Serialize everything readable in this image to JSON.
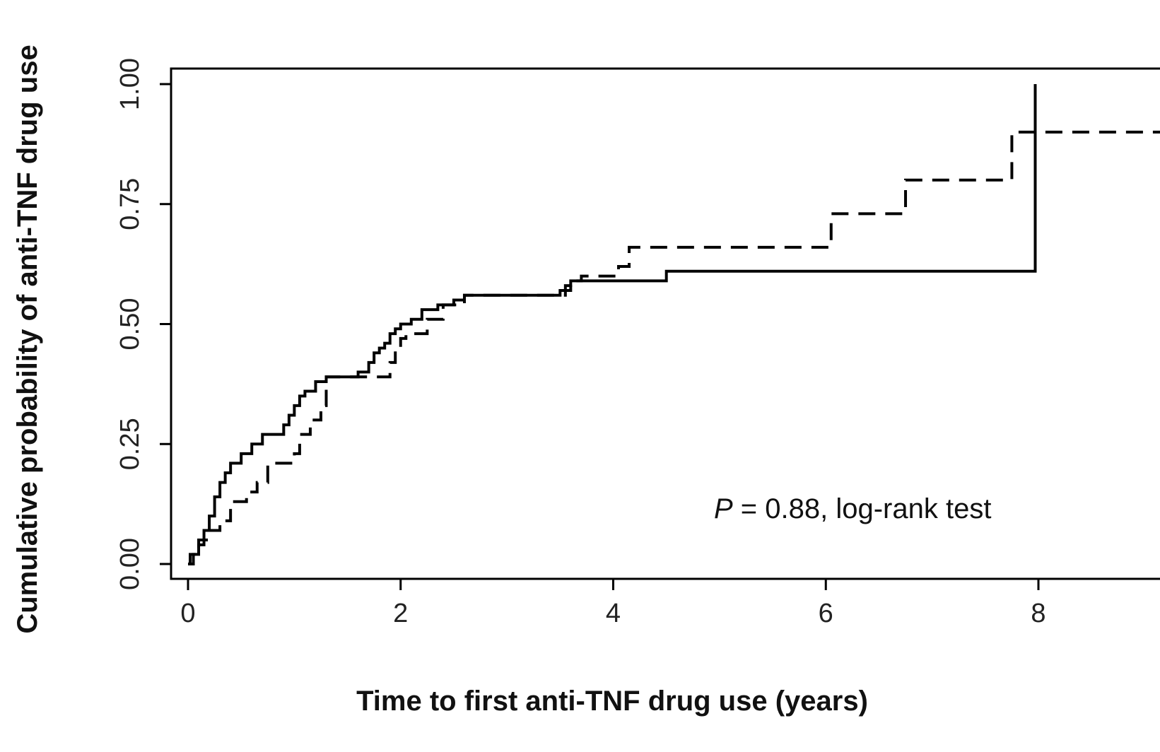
{
  "chart_data": {
    "type": "line",
    "chart_style": "step",
    "xlabel": "Time to first anti-TNF drug use (years)",
    "ylabel": "Cumulative probability of anti-TNF drug use",
    "xlim": [
      0,
      9.6
    ],
    "ylim": [
      0,
      1.0
    ],
    "xticks": [
      0,
      2,
      4,
      6,
      8
    ],
    "xtick_labels": [
      "0",
      "2",
      "4",
      "6",
      "8"
    ],
    "yticks": [
      0,
      0.25,
      0.5,
      0.75,
      1.0
    ],
    "ytick_labels": [
      "0.00",
      "0.25",
      "0.50",
      "0.75",
      "1.00"
    ],
    "grid": false,
    "annotation": {
      "p_symbol": "P",
      "rest": " = 0.88, log-rank test"
    },
    "series": [
      {
        "line_style": "solid",
        "color": "#000000",
        "x": [
          0,
          0.02,
          0.1,
          0.15,
          0.2,
          0.25,
          0.3,
          0.35,
          0.4,
          0.5,
          0.6,
          0.7,
          0.9,
          0.95,
          1.0,
          1.05,
          1.1,
          1.2,
          1.3,
          1.6,
          1.7,
          1.75,
          1.8,
          1.85,
          1.9,
          1.95,
          2.0,
          2.1,
          2.2,
          2.35,
          2.5,
          2.6,
          3.5,
          3.55,
          3.6,
          3.7,
          4.5,
          7.97,
          7.97
        ],
        "y": [
          0.0,
          0.02,
          0.04,
          0.07,
          0.1,
          0.14,
          0.17,
          0.19,
          0.21,
          0.23,
          0.25,
          0.27,
          0.29,
          0.31,
          0.33,
          0.35,
          0.36,
          0.38,
          0.39,
          0.4,
          0.42,
          0.44,
          0.45,
          0.46,
          0.48,
          0.49,
          0.5,
          0.51,
          0.53,
          0.54,
          0.55,
          0.56,
          0.57,
          0.58,
          0.59,
          0.59,
          0.61,
          0.61,
          1.0
        ]
      },
      {
        "line_style": "dashed",
        "color": "#000000",
        "x": [
          0,
          0.05,
          0.1,
          0.2,
          0.3,
          0.4,
          0.55,
          0.65,
          0.75,
          1.0,
          1.05,
          1.15,
          1.25,
          1.3,
          1.85,
          1.9,
          1.95,
          2.0,
          2.05,
          2.25,
          2.4,
          2.6,
          3.55,
          3.6,
          3.7,
          4.05,
          4.15,
          6.0,
          6.05,
          6.7,
          6.75,
          7.7,
          7.75,
          9.6
        ],
        "y": [
          0.0,
          0.02,
          0.05,
          0.07,
          0.09,
          0.13,
          0.15,
          0.17,
          0.21,
          0.23,
          0.27,
          0.3,
          0.33,
          0.39,
          0.39,
          0.42,
          0.45,
          0.47,
          0.48,
          0.51,
          0.54,
          0.56,
          0.57,
          0.59,
          0.6,
          0.62,
          0.66,
          0.66,
          0.73,
          0.73,
          0.8,
          0.8,
          0.9,
          0.9
        ]
      }
    ]
  }
}
